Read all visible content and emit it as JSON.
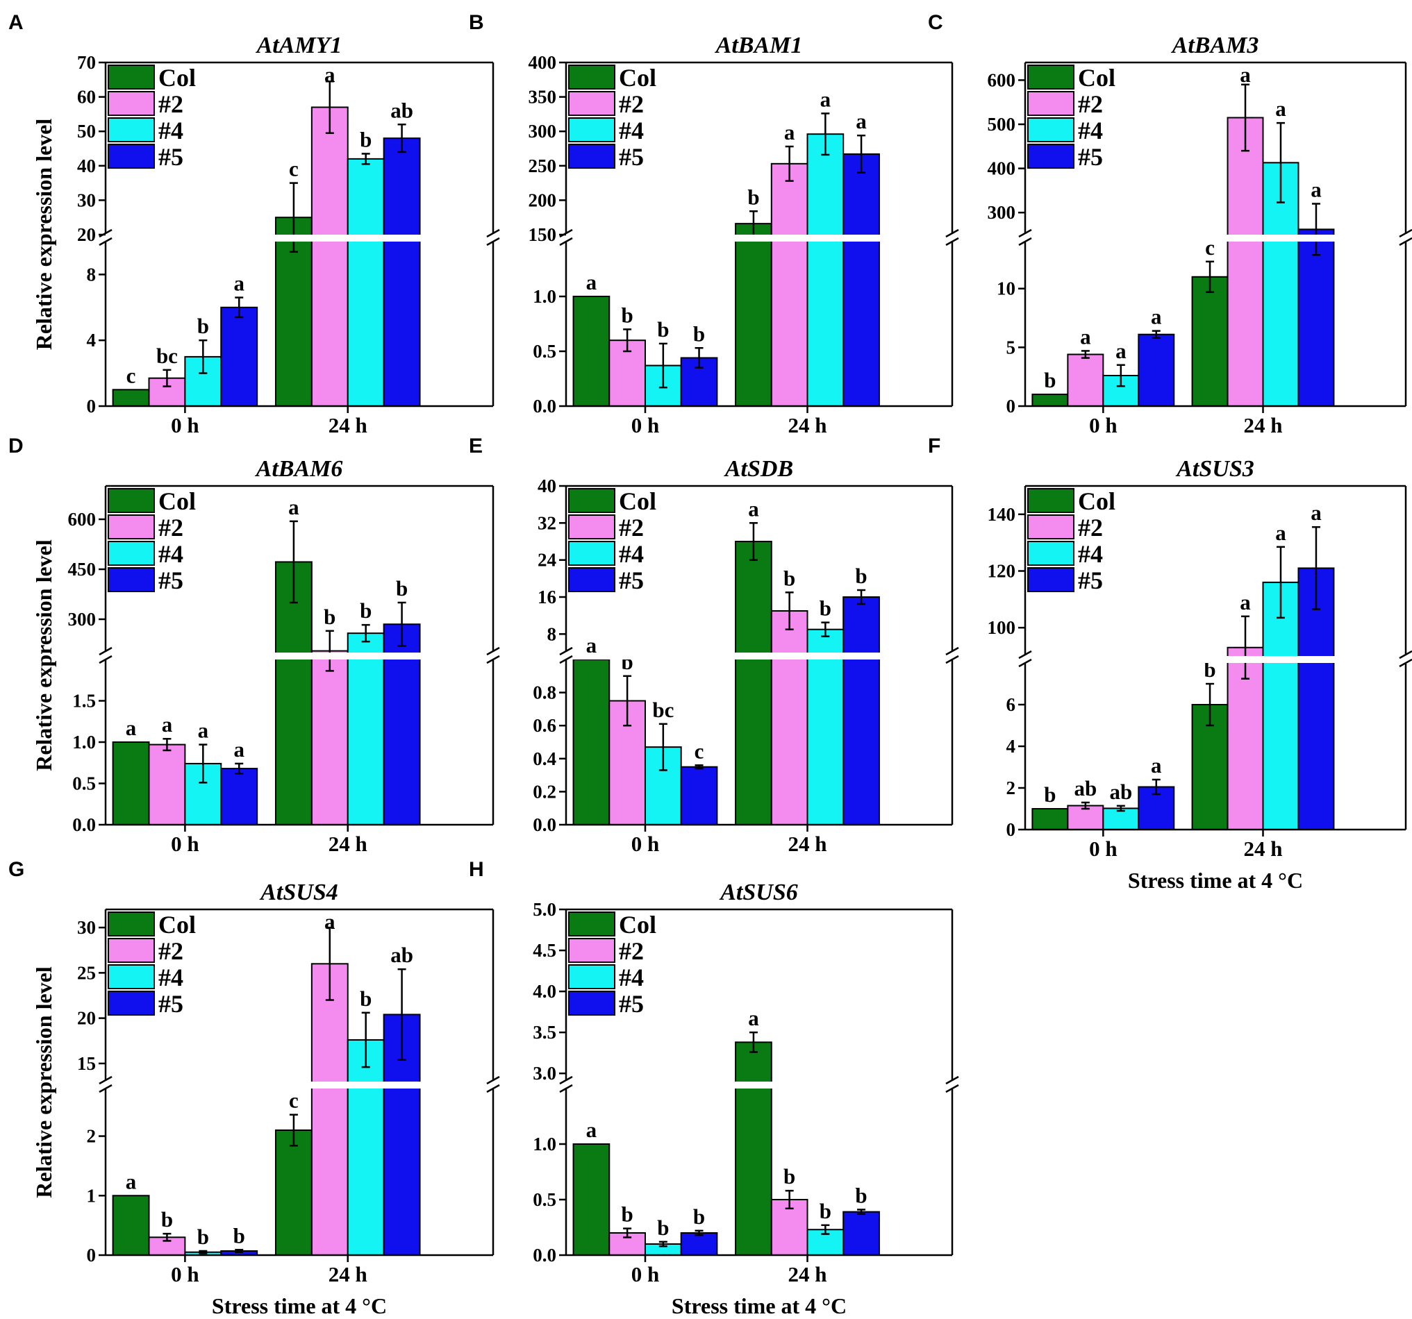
{
  "colors": {
    "Col": "#0a7a12",
    "#2": "#f48cf0",
    "#4": "#14f4f4",
    "#5": "#1010ee",
    "border": "#000000",
    "break_band": "#ffffff"
  },
  "chart_data": [
    {
      "panel": "A",
      "type": "bar",
      "title": "AtAMY1",
      "ylabel": "Relative expression level",
      "xlabel": "",
      "categories": [
        "0 h",
        "24 h"
      ],
      "legend": [
        "Col",
        "#2",
        "#4",
        "#5"
      ],
      "legend_position": "top-left",
      "axis_break": {
        "lower": [
          0,
          10
        ],
        "upper": [
          20,
          70
        ]
      },
      "lower_ticks": [
        0,
        4,
        8
      ],
      "upper_ticks": [
        20,
        30,
        40,
        50,
        60,
        70
      ],
      "series": [
        {
          "name": "Col",
          "values": [
            1.0,
            25
          ],
          "errors": [
            0,
            10
          ],
          "letters": [
            "c",
            "c"
          ]
        },
        {
          "name": "#2",
          "values": [
            1.7,
            57
          ],
          "errors": [
            0.5,
            7.5
          ],
          "letters": [
            "bc",
            "a"
          ]
        },
        {
          "name": "#4",
          "values": [
            3.0,
            42
          ],
          "errors": [
            1.0,
            1.5
          ],
          "letters": [
            "b",
            "b"
          ]
        },
        {
          "name": "#5",
          "values": [
            6.0,
            48
          ],
          "errors": [
            0.6,
            4.0
          ],
          "letters": [
            "a",
            "ab"
          ]
        }
      ]
    },
    {
      "panel": "B",
      "type": "bar",
      "title": "AtBAM1",
      "ylabel": "",
      "xlabel": "",
      "categories": [
        "0 h",
        "24 h"
      ],
      "legend": [
        "Col",
        "#2",
        "#4",
        "#5"
      ],
      "legend_position": "top-left",
      "axis_break": {
        "lower": [
          0,
          1.5
        ],
        "upper": [
          150,
          400
        ]
      },
      "lower_ticks": [
        0.0,
        0.5,
        1.0
      ],
      "upper_ticks": [
        150,
        200,
        250,
        300,
        350,
        400
      ],
      "lower_tick_decimals": 1,
      "series": [
        {
          "name": "Col",
          "values": [
            1.0,
            166
          ],
          "errors": [
            0,
            18
          ],
          "letters": [
            "a",
            "b"
          ]
        },
        {
          "name": "#2",
          "values": [
            0.6,
            253
          ],
          "errors": [
            0.1,
            25
          ],
          "letters": [
            "b",
            "a"
          ]
        },
        {
          "name": "#4",
          "values": [
            0.37,
            296
          ],
          "errors": [
            0.2,
            30
          ],
          "letters": [
            "b",
            "a"
          ]
        },
        {
          "name": "#5",
          "values": [
            0.44,
            267
          ],
          "errors": [
            0.09,
            27
          ],
          "letters": [
            "b",
            "a"
          ]
        }
      ]
    },
    {
      "panel": "C",
      "type": "bar",
      "title": "AtBAM3",
      "ylabel": "",
      "xlabel": "",
      "categories": [
        "0 h",
        "24 h"
      ],
      "legend": [
        "Col",
        "#2",
        "#4",
        "#5"
      ],
      "legend_position": "top-left",
      "axis_break": {
        "lower": [
          0,
          14
        ],
        "upper": [
          250,
          640
        ]
      },
      "lower_ticks": [
        0,
        5,
        10
      ],
      "upper_ticks": [
        300,
        400,
        500,
        600
      ],
      "series": [
        {
          "name": "Col",
          "values": [
            1.0,
            11
          ],
          "errors": [
            0,
            1.3
          ],
          "letters": [
            "b",
            "c"
          ]
        },
        {
          "name": "#2",
          "values": [
            4.4,
            515
          ],
          "errors": [
            0.3,
            75
          ],
          "letters": [
            "a",
            "a"
          ]
        },
        {
          "name": "#4",
          "values": [
            2.6,
            413
          ],
          "errors": [
            0.9,
            90
          ],
          "letters": [
            "a",
            "a"
          ]
        },
        {
          "name": "#5",
          "values": [
            6.1,
            262
          ],
          "errors": [
            0.3,
            58
          ],
          "letters": [
            "a",
            "a"
          ]
        }
      ]
    },
    {
      "panel": "D",
      "type": "bar",
      "title": "AtBAM6",
      "ylabel": "Relative expression level",
      "xlabel": "",
      "categories": [
        "0 h",
        "24 h"
      ],
      "legend": [
        "Col",
        "#2",
        "#4",
        "#5"
      ],
      "legend_position": "top-left",
      "axis_break": {
        "lower": [
          0,
          2.0
        ],
        "upper": [
          200,
          700
        ]
      },
      "lower_ticks": [
        0.0,
        0.5,
        1.0,
        1.5
      ],
      "upper_ticks": [
        300,
        450,
        600
      ],
      "lower_tick_decimals": 1,
      "series": [
        {
          "name": "Col",
          "values": [
            1.0,
            472
          ],
          "errors": [
            0,
            122
          ],
          "letters": [
            "a",
            "a"
          ]
        },
        {
          "name": "#2",
          "values": [
            0.97,
            205
          ],
          "errors": [
            0.07,
            60
          ],
          "letters": [
            "a",
            "b"
          ]
        },
        {
          "name": "#4",
          "values": [
            0.74,
            258
          ],
          "errors": [
            0.23,
            25
          ],
          "letters": [
            "a",
            "b"
          ]
        },
        {
          "name": "#5",
          "values": [
            0.68,
            285
          ],
          "errors": [
            0.06,
            65
          ],
          "letters": [
            "a",
            "b"
          ]
        }
      ]
    },
    {
      "panel": "E",
      "type": "bar",
      "title": "AtSDB",
      "ylabel": "",
      "xlabel": "",
      "categories": [
        "0 h",
        "24 h"
      ],
      "legend": [
        "Col",
        "#2",
        "#4",
        "#5"
      ],
      "legend_position": "top-left",
      "axis_break": {
        "lower": [
          0,
          1.0
        ],
        "upper": [
          4,
          40
        ]
      },
      "lower_ticks": [
        0.0,
        0.2,
        0.4,
        0.6,
        0.8
      ],
      "upper_ticks": [
        8,
        16,
        24,
        32,
        40
      ],
      "lower_tick_decimals": 1,
      "series": [
        {
          "name": "Col",
          "values": [
            1.0,
            28
          ],
          "errors": [
            0,
            4
          ],
          "letters": [
            "a",
            "a"
          ]
        },
        {
          "name": "#2",
          "values": [
            0.75,
            13
          ],
          "errors": [
            0.15,
            4
          ],
          "letters": [
            "b",
            "b"
          ]
        },
        {
          "name": "#4",
          "values": [
            0.47,
            9
          ],
          "errors": [
            0.14,
            1.5
          ],
          "letters": [
            "bc",
            "b"
          ]
        },
        {
          "name": "#5",
          "values": [
            0.35,
            16
          ],
          "errors": [
            0.01,
            1.5
          ],
          "letters": [
            "c",
            "b"
          ]
        }
      ]
    },
    {
      "panel": "F",
      "type": "bar",
      "title": "AtSUS3",
      "ylabel": "",
      "xlabel": "Stress time at 4 °C",
      "categories": [
        "0 h",
        "24 h"
      ],
      "legend": [
        "Col",
        "#2",
        "#4",
        "#5"
      ],
      "legend_position": "top-left",
      "axis_break": {
        "lower": [
          0,
          8
        ],
        "upper": [
          90,
          150
        ]
      },
      "lower_ticks": [
        0,
        2,
        4,
        6
      ],
      "upper_ticks": [
        100,
        120,
        140
      ],
      "series": [
        {
          "name": "Col",
          "values": [
            1.0,
            6.0
          ],
          "errors": [
            0,
            1.0
          ],
          "letters": [
            "b",
            "b"
          ]
        },
        {
          "name": "#2",
          "values": [
            1.15,
            93
          ],
          "errors": [
            0.15,
            11
          ],
          "letters": [
            "ab",
            "a"
          ]
        },
        {
          "name": "#4",
          "values": [
            1.02,
            116
          ],
          "errors": [
            0.12,
            12.5
          ],
          "letters": [
            "ab",
            "a"
          ]
        },
        {
          "name": "#5",
          "values": [
            2.05,
            121
          ],
          "errors": [
            0.35,
            14.5
          ],
          "letters": [
            "a",
            "a"
          ]
        }
      ]
    },
    {
      "panel": "G",
      "type": "bar",
      "title": "AtSUS4",
      "ylabel": "Relative expression level",
      "xlabel": "Stress time at 4 °C",
      "categories": [
        "0 h",
        "24 h"
      ],
      "legend": [
        "Col",
        "#2",
        "#4",
        "#5"
      ],
      "legend_position": "top-left",
      "axis_break": {
        "lower": [
          0,
          2.8
        ],
        "upper": [
          13,
          32
        ]
      },
      "lower_ticks": [
        0,
        1,
        2
      ],
      "upper_ticks": [
        15,
        20,
        25,
        30
      ],
      "series": [
        {
          "name": "Col",
          "values": [
            1.0,
            2.1
          ],
          "errors": [
            0,
            0.26
          ],
          "letters": [
            "a",
            "c"
          ]
        },
        {
          "name": "#2",
          "values": [
            0.3,
            26
          ],
          "errors": [
            0.06,
            4
          ],
          "letters": [
            "b",
            "a"
          ]
        },
        {
          "name": "#4",
          "values": [
            0.05,
            17.6
          ],
          "errors": [
            0.02,
            3
          ],
          "letters": [
            "b",
            "b"
          ]
        },
        {
          "name": "#5",
          "values": [
            0.07,
            20.4
          ],
          "errors": [
            0.02,
            5
          ],
          "letters": [
            "b",
            "ab"
          ]
        }
      ]
    },
    {
      "panel": "H",
      "type": "bar",
      "title": "AtSUS6",
      "ylabel": "",
      "xlabel": "Stress time at 4 °C",
      "categories": [
        "0 h",
        "24 h"
      ],
      "legend": [
        "Col",
        "#2",
        "#4",
        "#5"
      ],
      "legend_position": "top-left",
      "axis_break": {
        "lower": [
          0,
          1.5
        ],
        "upper": [
          2.9,
          5.0
        ]
      },
      "lower_ticks": [
        0.0,
        0.5,
        1.0
      ],
      "upper_ticks": [
        3.0,
        3.5,
        4.0,
        4.5,
        5.0
      ],
      "lower_tick_decimals": 1,
      "upper_tick_decimals": 1,
      "series": [
        {
          "name": "Col",
          "values": [
            1.0,
            3.38
          ],
          "errors": [
            0,
            0.12
          ],
          "letters": [
            "a",
            "a"
          ]
        },
        {
          "name": "#2",
          "values": [
            0.2,
            0.5
          ],
          "errors": [
            0.04,
            0.08
          ],
          "letters": [
            "b",
            "b"
          ]
        },
        {
          "name": "#4",
          "values": [
            0.1,
            0.23
          ],
          "errors": [
            0.02,
            0.04
          ],
          "letters": [
            "b",
            "b"
          ]
        },
        {
          "name": "#5",
          "values": [
            0.2,
            0.39
          ],
          "errors": [
            0.02,
            0.02
          ],
          "letters": [
            "b",
            "b"
          ]
        }
      ]
    }
  ]
}
